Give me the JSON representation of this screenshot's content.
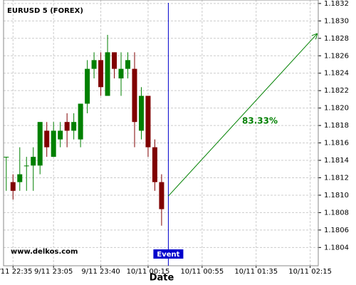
{
  "chart_data": {
    "type": "candlestick",
    "title": "EURUSD 5 (FOREX)",
    "x_label": "Date",
    "watermark": "www.delkos.com",
    "x": [
      "9/11 22:30",
      "9/11 22:35",
      "9/11 22:40",
      "9/11 22:45",
      "9/11 22:50",
      "9/11 22:55",
      "9/11 23:00",
      "9/11 23:05",
      "9/11 23:10",
      "9/11 23:15",
      "9/11 23:20",
      "9/11 23:25",
      "9/11 23:30",
      "9/11 23:35",
      "9/11 23:40",
      "9/11 23:45",
      "9/11 23:50",
      "9/11 23:55",
      "10/11 00:00",
      "10/11 00:05",
      "10/11 00:10",
      "10/11 00:15",
      "10/11 00:20",
      "10/11 00:25"
    ],
    "open": [
      1.18144,
      1.18115,
      1.18115,
      1.18134,
      1.18134,
      1.18134,
      1.18174,
      1.18144,
      1.18164,
      1.18184,
      1.18174,
      1.18164,
      1.18205,
      1.18245,
      1.18255,
      1.18214,
      1.18264,
      1.18234,
      1.18245,
      1.18245,
      1.18174,
      1.18214,
      1.18155,
      1.18115
    ],
    "high": [
      1.18144,
      1.18124,
      1.18155,
      1.18144,
      1.18155,
      1.18184,
      1.18184,
      1.18184,
      1.18184,
      1.18194,
      1.18194,
      1.18205,
      1.18255,
      1.18264,
      1.18264,
      1.18284,
      1.18264,
      1.18264,
      1.18264,
      1.18264,
      1.18224,
      1.18214,
      1.18164,
      1.18124
    ],
    "low": [
      1.18105,
      1.18095,
      1.18105,
      1.18105,
      1.18105,
      1.18124,
      1.18144,
      1.18144,
      1.18155,
      1.18155,
      1.18164,
      1.18155,
      1.18194,
      1.18234,
      1.18214,
      1.18214,
      1.18234,
      1.18214,
      1.18234,
      1.18155,
      1.18164,
      1.18144,
      1.18105,
      1.18065
    ],
    "close": [
      1.18144,
      1.18105,
      1.18124,
      1.18134,
      1.18144,
      1.18184,
      1.18155,
      1.18174,
      1.18174,
      1.18174,
      1.18184,
      1.18205,
      1.18245,
      1.18255,
      1.18224,
      1.18264,
      1.18245,
      1.18245,
      1.18255,
      1.18184,
      1.18214,
      1.18155,
      1.18115,
      1.18084
    ],
    "up_color": "#008000",
    "down_color": "#800000",
    "xlim": [
      "9/11 22:28",
      "10/11 02:21"
    ],
    "xticks": [
      "9/11 22:35",
      "9/11 23:05",
      "9/11 23:40",
      "10/11 00:15",
      "10/11 00:55",
      "10/11 01:35",
      "10/11 02:15"
    ],
    "ylim": [
      1.18019,
      1.18324
    ],
    "yticks": [
      1.1804,
      1.1806,
      1.1808,
      {
        "value": 1.181,
        "label": "1.1810"
      },
      1.1812,
      1.1814,
      1.1816,
      1.1818,
      {
        "value": 1.182,
        "label": "1.1820"
      },
      1.1822,
      1.1824,
      1.1826,
      1.1828,
      {
        "value": 1.183,
        "label": "1.1830"
      },
      1.1832
    ],
    "grid": true,
    "event": {
      "x": "10/11 00:30",
      "label": "Event",
      "color": "#0000cc"
    },
    "arrow": {
      "x": [
        "10/11 00:30",
        "10/11 02:20"
      ],
      "y": [
        1.18099,
        1.18285
      ],
      "label": "83.33%",
      "color": "#008000"
    }
  }
}
